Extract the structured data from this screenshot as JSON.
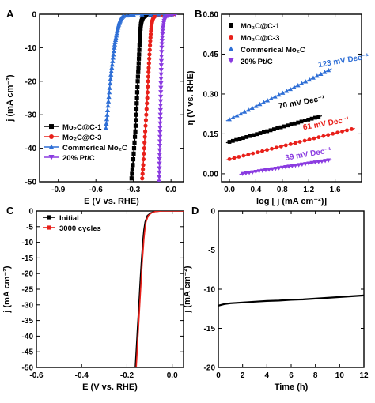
{
  "panels": [
    {
      "letter": "A"
    },
    {
      "letter": "B"
    },
    {
      "letter": "C"
    },
    {
      "letter": "D"
    }
  ],
  "chart_data": [
    {
      "panel": "A",
      "type": "line",
      "xlabel": "E (V vs. RHE)",
      "ylabel": "j (mA cm⁻²)",
      "xlim": [
        -1.05,
        0.1
      ],
      "ylim": [
        -50,
        0
      ],
      "xticks": [
        -0.9,
        -0.6,
        -0.3,
        0.0
      ],
      "xtick_labels": [
        "-0.9",
        "-0.6",
        "-0.3",
        "0.0"
      ],
      "yticks": [
        0,
        -10,
        -20,
        -30,
        -40,
        -50
      ],
      "ytick_labels": [
        "0",
        "-10",
        "-20",
        "-30",
        "-40",
        "-50"
      ],
      "legend_position": "bottom-left",
      "series": [
        {
          "name": "Mo₂C@C-1",
          "color": "#000000",
          "marker": "square",
          "x": [
            -0.315,
            -0.305,
            -0.295,
            -0.285,
            -0.278,
            -0.272,
            -0.266,
            -0.26,
            -0.255,
            -0.25,
            -0.245,
            -0.24,
            -0.235,
            -0.225,
            -0.2,
            -0.1,
            0.05
          ],
          "y": [
            -49,
            -45,
            -40,
            -35,
            -30,
            -25,
            -20,
            -16,
            -12,
            -8,
            -5,
            -3,
            -2,
            -1,
            -0.3,
            0,
            0
          ]
        },
        {
          "name": "Mo₂C@C-3",
          "color": "#e8201a",
          "marker": "circle",
          "x": [
            -0.23,
            -0.222,
            -0.214,
            -0.206,
            -0.198,
            -0.19,
            -0.184,
            -0.178,
            -0.172,
            -0.166,
            -0.16,
            -0.155,
            -0.15,
            -0.14,
            -0.12,
            -0.05,
            0.05
          ],
          "y": [
            -49,
            -45,
            -40,
            -35,
            -30,
            -25,
            -20,
            -16,
            -12,
            -8,
            -5,
            -3,
            -2,
            -1,
            -0.3,
            0,
            0
          ]
        },
        {
          "name": "Commerical Mo₂C",
          "color": "#2f6fd6",
          "marker": "triangle-up",
          "x": [
            -0.52,
            -0.51,
            -0.5,
            -0.49,
            -0.48,
            -0.47,
            -0.46,
            -0.45,
            -0.44,
            -0.43,
            -0.42,
            -0.41,
            -0.4,
            -0.38,
            -0.3,
            -0.1,
            0.05
          ],
          "y": [
            -34,
            -30,
            -26,
            -22,
            -18,
            -15,
            -12,
            -9,
            -7,
            -5,
            -3.5,
            -2.2,
            -1.3,
            -0.5,
            -0.1,
            0,
            0
          ]
        },
        {
          "name": "20% Pt/C",
          "color": "#8a3be0",
          "marker": "triangle-down",
          "x": [
            -0.095,
            -0.093,
            -0.091,
            -0.089,
            -0.087,
            -0.085,
            -0.083,
            -0.081,
            -0.079,
            -0.077,
            -0.074,
            -0.07,
            -0.065,
            -0.055,
            -0.04,
            0.0,
            0.05
          ],
          "y": [
            -50,
            -46,
            -42,
            -38,
            -34,
            -30,
            -26,
            -22,
            -18,
            -14,
            -10,
            -7,
            -4,
            -2,
            -0.8,
            0,
            0
          ]
        }
      ]
    },
    {
      "panel": "B",
      "type": "scatter",
      "xlabel": "log [ j (mA cm⁻²)]",
      "ylabel": "η (V vs. RHE)",
      "xlim": [
        -0.12,
        2.0
      ],
      "ylim": [
        -0.03,
        0.6
      ],
      "xticks": [
        0.0,
        0.4,
        0.8,
        1.2,
        1.6
      ],
      "xtick_labels": [
        "0.0",
        "0.4",
        "0.8",
        "1.2",
        "1.6"
      ],
      "yticks": [
        0.0,
        0.15,
        0.3,
        0.45,
        0.6
      ],
      "ytick_labels": [
        "0.00",
        "0.15",
        "0.30",
        "0.45",
        "0.60"
      ],
      "legend_position": "top-left",
      "series": [
        {
          "name": "Mo₂C@C-1",
          "color": "#000000",
          "marker": "square",
          "x_range": [
            0.0,
            1.35
          ],
          "intercept": 0.12,
          "slope": 0.07,
          "label": "70 mV Dec⁻¹"
        },
        {
          "name": "Mo₂C@C-3",
          "color": "#e8201a",
          "marker": "circle",
          "x_range": [
            0.0,
            1.85
          ],
          "intercept": 0.055,
          "slope": 0.061,
          "label": "61 mV Dec⁻¹"
        },
        {
          "name": "Commerical Mo₂C",
          "color": "#2f6fd6",
          "marker": "triangle-up",
          "x_range": [
            0.0,
            1.5
          ],
          "intercept": 0.205,
          "slope": 0.123,
          "label": "123 mV Dec⁻¹"
        },
        {
          "name": "20% Pt/C",
          "color": "#8a3be0",
          "marker": "triangle-down",
          "x_range": [
            0.2,
            1.5
          ],
          "intercept": -0.008,
          "slope": 0.039,
          "label": "39 mV Dec⁻¹"
        }
      ]
    },
    {
      "panel": "C",
      "type": "line",
      "xlabel": "E (V vs. RHE)",
      "ylabel": "j (mA cm⁻²)",
      "xlim": [
        -0.6,
        0.05
      ],
      "ylim": [
        -50,
        0
      ],
      "xticks": [
        -0.6,
        -0.4,
        -0.2,
        0.0
      ],
      "xtick_labels": [
        "-0.6",
        "-0.4",
        "-0.2",
        "0.0"
      ],
      "yticks": [
        0,
        -5,
        -10,
        -15,
        -20,
        -25,
        -30,
        -35,
        -40,
        -45,
        -50
      ],
      "ytick_labels": [
        "0",
        "-5",
        "-10",
        "-15",
        "-20",
        "-25",
        "-30",
        "-35",
        "-40",
        "-45",
        "-50"
      ],
      "legend_position": "top-left",
      "series": [
        {
          "name": "Initial",
          "color": "#000000",
          "x": [
            -0.163,
            -0.16,
            -0.157,
            -0.153,
            -0.149,
            -0.145,
            -0.141,
            -0.137,
            -0.133,
            -0.129,
            -0.125,
            -0.12,
            -0.11,
            -0.095,
            -0.08,
            -0.05,
            0.0,
            0.05
          ],
          "y": [
            -50,
            -46,
            -42,
            -37,
            -32,
            -27,
            -22,
            -17,
            -13,
            -9,
            -6,
            -3.5,
            -1.5,
            -0.6,
            -0.2,
            0,
            0,
            0
          ]
        },
        {
          "name": "3000 cycles",
          "color": "#e8201a",
          "x": [
            -0.159,
            -0.156,
            -0.153,
            -0.149,
            -0.145,
            -0.141,
            -0.137,
            -0.133,
            -0.129,
            -0.125,
            -0.121,
            -0.116,
            -0.106,
            -0.091,
            -0.076,
            -0.046,
            0.0,
            0.05
          ],
          "y": [
            -50,
            -46,
            -42,
            -37,
            -32,
            -27,
            -22,
            -17,
            -13,
            -9,
            -6,
            -3.5,
            -1.5,
            -0.6,
            -0.2,
            0,
            0,
            0
          ]
        }
      ]
    },
    {
      "panel": "D",
      "type": "line",
      "xlabel": "Time (h)",
      "ylabel": "j (mA cm⁻²)",
      "xlim": [
        0,
        12
      ],
      "ylim": [
        -20,
        0
      ],
      "xticks": [
        0,
        2,
        4,
        6,
        8,
        10,
        12
      ],
      "xtick_labels": [
        "0",
        "2",
        "4",
        "6",
        "8",
        "10",
        "12"
      ],
      "yticks": [
        0,
        -5,
        -10,
        -15,
        -20
      ],
      "ytick_labels": [
        "0",
        "-5",
        "-10",
        "-15",
        "-20"
      ],
      "series": [
        {
          "name": "",
          "color": "#000000",
          "x": [
            0,
            0.5,
            1,
            2,
            3,
            4,
            5,
            6,
            7,
            8,
            9,
            10,
            11,
            12
          ],
          "y": [
            -12.1,
            -11.9,
            -11.8,
            -11.7,
            -11.6,
            -11.5,
            -11.45,
            -11.35,
            -11.3,
            -11.2,
            -11.1,
            -11.0,
            -10.9,
            -10.8
          ]
        }
      ]
    }
  ]
}
